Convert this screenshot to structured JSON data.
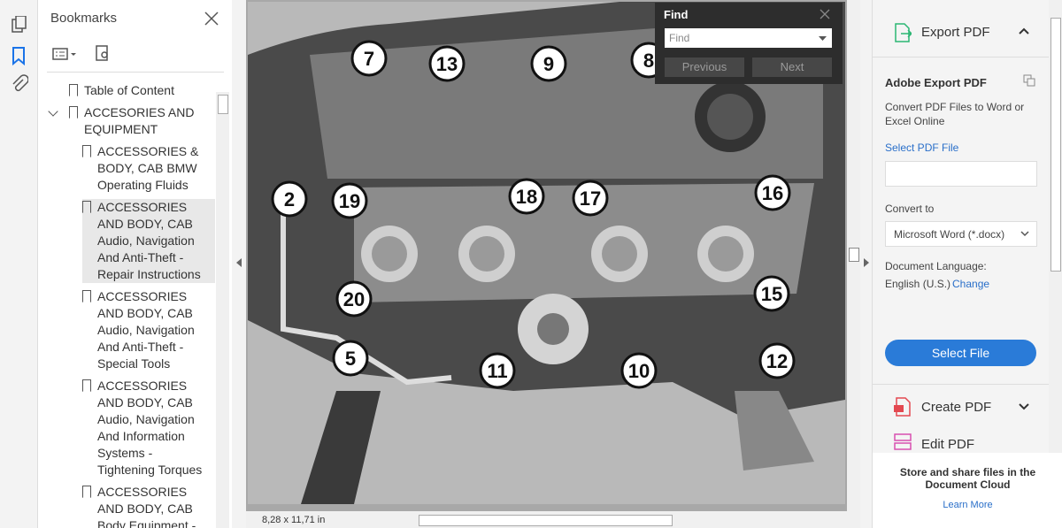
{
  "sidebar": {
    "title": "Bookmarks",
    "bookmarks": [
      {
        "label": "Table of Content"
      },
      {
        "label": "ACCESORIES AND EQUIPMENT",
        "children": [
          {
            "label": "ACCESSORIES & BODY, CAB BMW Operating Fluids"
          },
          {
            "label": "ACCESSORIES AND BODY, CAB Audio, Navigation And Anti-Theft - Repair Instructions"
          },
          {
            "label": "ACCESSORIES AND BODY, CAB Audio, Navigation And Anti-Theft - Special Tools"
          },
          {
            "label": "ACCESSORIES AND BODY, CAB Audio, Navigation And Information Systems - Tightening Torques"
          },
          {
            "label": "ACCESSORIES AND BODY, CAB Body Equipment - Repair Instructions"
          }
        ]
      }
    ]
  },
  "document": {
    "callouts": [
      "7",
      "13",
      "9",
      "8",
      "2",
      "19",
      "18",
      "17",
      "16",
      "20",
      "15",
      "5",
      "11",
      "10",
      "12"
    ],
    "page_size": "8,28 x 11,71 in"
  },
  "find": {
    "title": "Find",
    "placeholder": "Find",
    "previous": "Previous",
    "next": "Next"
  },
  "right_panel": {
    "export_title": "Export PDF",
    "heading": "Adobe Export PDF",
    "description": "Convert PDF Files to Word or Excel Online",
    "select_pdf": "Select PDF File",
    "convert_to": "Convert to",
    "format": "Microsoft Word (*.docx)",
    "language_label": "Document Language:",
    "language": "English (U.S.)",
    "change": "Change",
    "select_file": "Select File",
    "create_pdf": "Create PDF",
    "edit_pdf": "Edit PDF",
    "cloud_text": "Store and share files in the Document Cloud",
    "learn_more": "Learn More"
  }
}
